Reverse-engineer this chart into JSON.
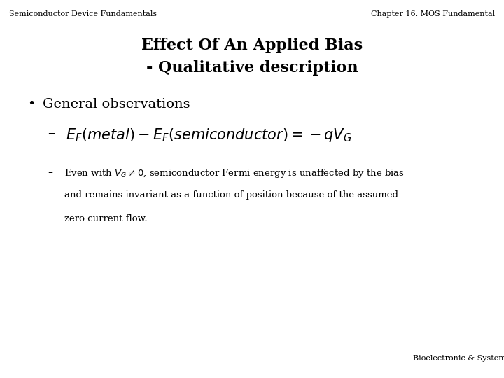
{
  "bg_color": "#ffffff",
  "header_left": "Semiconductor Device Fundamentals",
  "header_right": "Chapter 16. MOS Fundamental",
  "header_fontsize": 8,
  "title_line1": "Effect Of An Applied Bias",
  "title_line2": "- Qualitative description",
  "title_fontsize": 16,
  "bullet_text": "General observations",
  "bullet_fontsize": 14,
  "dash1_formula": "$E_F(metal) - E_F(semiconductor) = -qV_G$",
  "dash1_fontsize": 15,
  "dash2_pre": "Even with ",
  "dash2_formula": "$V_G \\neq 0$",
  "dash2_post": ", semiconductor Fermi energy is unaffected by the bias",
  "dash2_line2": "and remains invariant as a function of position because of the assumed",
  "dash2_line3": "zero current flow.",
  "dash2_fontsize": 9.5,
  "footer_text": "Bioelectronic & Systems Lab.",
  "footer_fontsize": 8
}
